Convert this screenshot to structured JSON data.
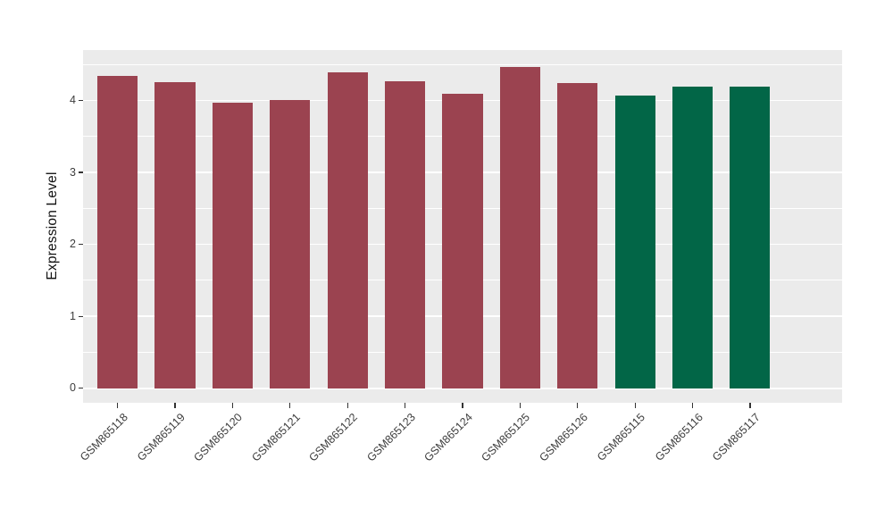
{
  "chart_data": {
    "type": "bar",
    "title": "",
    "xlabel": "",
    "ylabel": "Expression Level",
    "categories": [
      "GSM865118",
      "GSM865119",
      "GSM865120",
      "GSM865121",
      "GSM865122",
      "GSM865123",
      "GSM865124",
      "GSM865125",
      "GSM865126",
      "GSM865115",
      "GSM865116",
      "GSM865117"
    ],
    "values": [
      4.34,
      4.25,
      3.97,
      4.01,
      4.39,
      4.26,
      4.09,
      4.46,
      4.24,
      4.07,
      4.19,
      4.19
    ],
    "bar_colors": [
      "#9B4350",
      "#9B4350",
      "#9B4350",
      "#9B4350",
      "#9B4350",
      "#9B4350",
      "#9B4350",
      "#9B4350",
      "#9B4350",
      "#026647",
      "#026647",
      "#026647"
    ],
    "group_colors": {
      "maroon": "#9B4350",
      "green": "#026647"
    },
    "y_tick_labels": [
      "0",
      "1",
      "2",
      "3",
      "4"
    ],
    "y_tick_values": [
      0,
      1,
      2,
      3,
      4
    ],
    "y_minor_values": [
      0.5,
      1.5,
      2.5,
      3.5,
      4.5
    ],
    "ylim": [
      -0.2,
      4.7
    ],
    "bar_width_fraction": 0.7,
    "x_label_angle_deg": 45,
    "legend": "none",
    "grid": true,
    "panel_bg": "#EBEBEB",
    "grid_color": "#FFFFFF",
    "axis_text_color": "#3D3D3D",
    "tick_mark_color": "#333333"
  }
}
